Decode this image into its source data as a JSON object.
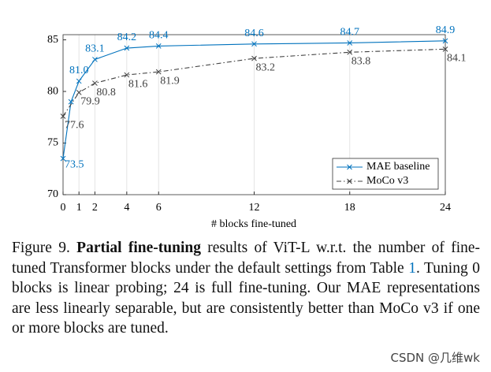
{
  "chart_data": {
    "type": "line",
    "xlabel": "# blocks fine-tuned",
    "xlim": [
      0,
      24
    ],
    "xticks": [
      0,
      1,
      2,
      4,
      6,
      12,
      18,
      24
    ],
    "ylim": [
      70,
      85.5
    ],
    "yticks": [
      70,
      75,
      80,
      85
    ],
    "grid": "x",
    "legend": "lower right",
    "series": [
      {
        "name": "MAE baseline",
        "color": "#0072bd",
        "dash": "solid",
        "x": [
          0,
          0.5,
          1,
          2,
          4,
          6,
          12,
          18,
          24
        ],
        "values": [
          73.5,
          79,
          81.0,
          83.1,
          84.2,
          84.4,
          84.6,
          84.7,
          84.9
        ],
        "value_labels": [
          "73.5",
          null,
          "81.0",
          "83.1",
          "84.2",
          "84.4",
          "84.6",
          "84.7",
          "84.9"
        ]
      },
      {
        "name": "MoCo v3",
        "color": "#404040",
        "dash": "dashdot",
        "x": [
          0,
          1,
          2,
          4,
          6,
          12,
          18,
          24
        ],
        "values": [
          77.6,
          79.9,
          80.8,
          81.6,
          81.9,
          83.2,
          83.8,
          84.1
        ],
        "value_labels": [
          "77.6",
          "79.9",
          "80.8",
          "81.6",
          "81.9",
          "83.2",
          "83.8",
          "84.1"
        ]
      }
    ]
  },
  "caption": {
    "prefix": "Figure 9.",
    "bold": "Partial fine-tuning",
    "text1": "results of ViT-L w.r.t. the number of fine-tuned Transformer blocks under the default settings from Table",
    "ref": "1",
    "text2": ". Tuning 0 blocks is linear probing; 24 is full fine-tuning. Our MAE representations are less linearly separable, but are consistently better than MoCo v3 if one or more blocks are tuned."
  },
  "watermark": "CSDN @几维wk"
}
